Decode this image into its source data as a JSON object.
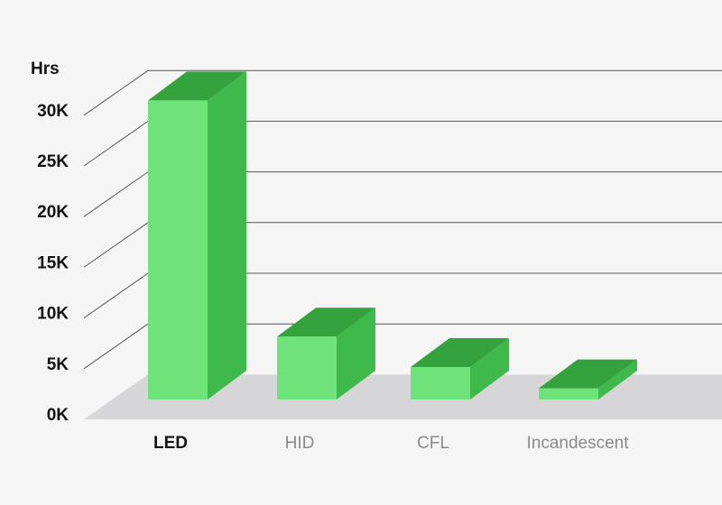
{
  "chart_data": {
    "type": "bar",
    "style": "3d",
    "y_unit_label": "Hrs",
    "categories": [
      "LED",
      "HID",
      "CFL",
      "Incandescent"
    ],
    "highlighted_category": "LED",
    "values": [
      29500,
      6200,
      3200,
      1100
    ],
    "ylim": [
      0,
      30000
    ],
    "y_ticks": [
      {
        "value": 0,
        "label": "0K"
      },
      {
        "value": 5000,
        "label": "5K"
      },
      {
        "value": 10000,
        "label": "10K"
      },
      {
        "value": 15000,
        "label": "15K"
      },
      {
        "value": 20000,
        "label": "20K"
      },
      {
        "value": 25000,
        "label": "25K"
      },
      {
        "value": 30000,
        "label": "30K"
      }
    ],
    "grid": true,
    "colors": {
      "bar_front": "#6ee37a",
      "bar_side": "#3fb94b",
      "bar_top": "#34a33e",
      "floor": "#d6d6d8",
      "gridline": "#555555",
      "background": "#f5f5f5"
    }
  }
}
